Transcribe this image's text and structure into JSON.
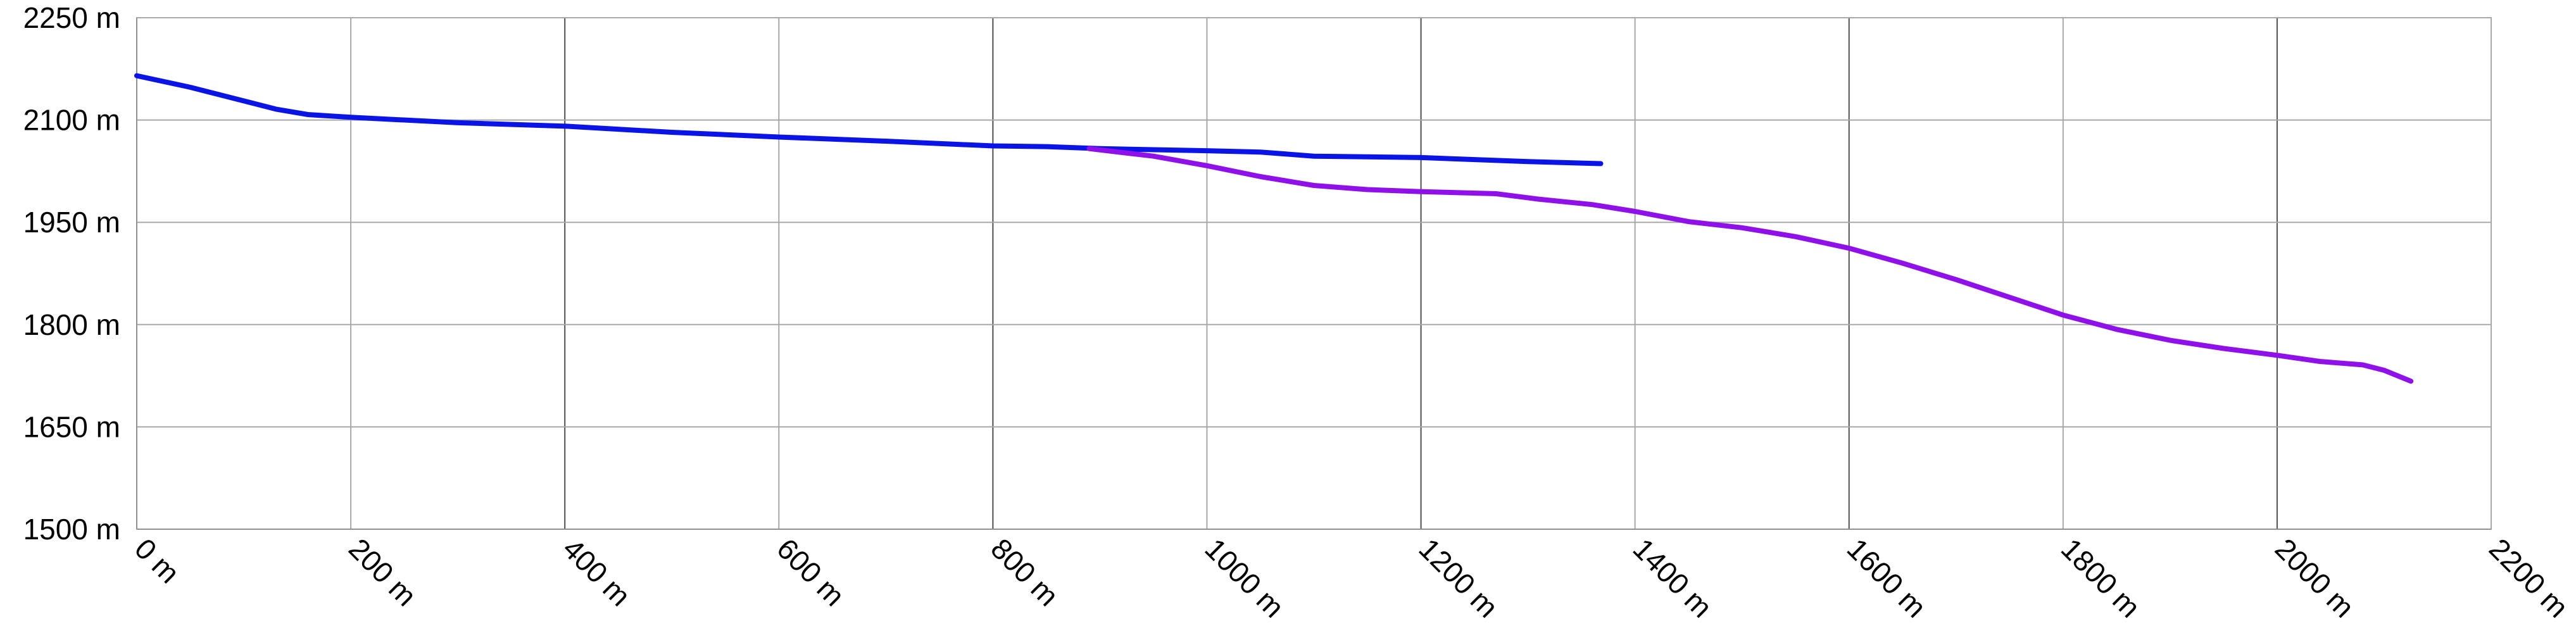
{
  "chart_data": {
    "type": "line",
    "title": "",
    "xlabel": "",
    "ylabel": "",
    "xlim": [
      0,
      2200
    ],
    "ylim": [
      1500,
      2250
    ],
    "x_ticks": [
      0,
      200,
      400,
      600,
      800,
      1000,
      1200,
      1400,
      1600,
      1800,
      2000,
      2200
    ],
    "x_tick_labels": [
      "0 m",
      "200 m",
      "400 m",
      "600 m",
      "800 m",
      "1000 m",
      "1200 m",
      "1400 m",
      "1600 m",
      "1800 m",
      "2000 m",
      "2200 m"
    ],
    "y_ticks": [
      1500,
      1650,
      1800,
      1950,
      2100,
      2250
    ],
    "y_tick_labels": [
      "1500 m",
      "1650 m",
      "1800 m",
      "1950 m",
      "2100 m",
      "2250 m"
    ],
    "grid": true,
    "legend": "none",
    "series": [
      {
        "color": "#0a14e6",
        "points": [
          [
            0,
            2165
          ],
          [
            50,
            2148
          ],
          [
            100,
            2128
          ],
          [
            130,
            2116
          ],
          [
            160,
            2108
          ],
          [
            200,
            2104
          ],
          [
            300,
            2096
          ],
          [
            400,
            2091
          ],
          [
            500,
            2082
          ],
          [
            600,
            2075
          ],
          [
            700,
            2069
          ],
          [
            800,
            2062
          ],
          [
            850,
            2061
          ],
          [
            900,
            2058
          ],
          [
            1000,
            2055
          ],
          [
            1050,
            2053
          ],
          [
            1100,
            2047
          ],
          [
            1200,
            2045
          ],
          [
            1300,
            2039
          ],
          [
            1368,
            2036
          ]
        ]
      },
      {
        "color": "#9010ea",
        "points": [
          [
            890,
            2058
          ],
          [
            950,
            2047
          ],
          [
            1000,
            2033
          ],
          [
            1050,
            2017
          ],
          [
            1100,
            2004
          ],
          [
            1150,
            1998
          ],
          [
            1200,
            1995
          ],
          [
            1270,
            1992
          ],
          [
            1310,
            1984
          ],
          [
            1360,
            1976
          ],
          [
            1400,
            1966
          ],
          [
            1450,
            1951
          ],
          [
            1500,
            1942
          ],
          [
            1550,
            1929
          ],
          [
            1600,
            1912
          ],
          [
            1650,
            1890
          ],
          [
            1700,
            1866
          ],
          [
            1750,
            1840
          ],
          [
            1800,
            1814
          ],
          [
            1850,
            1793
          ],
          [
            1900,
            1777
          ],
          [
            1950,
            1765
          ],
          [
            2000,
            1755
          ],
          [
            2040,
            1746
          ],
          [
            2080,
            1741
          ],
          [
            2100,
            1733
          ],
          [
            2125,
            1717
          ]
        ]
      }
    ]
  }
}
